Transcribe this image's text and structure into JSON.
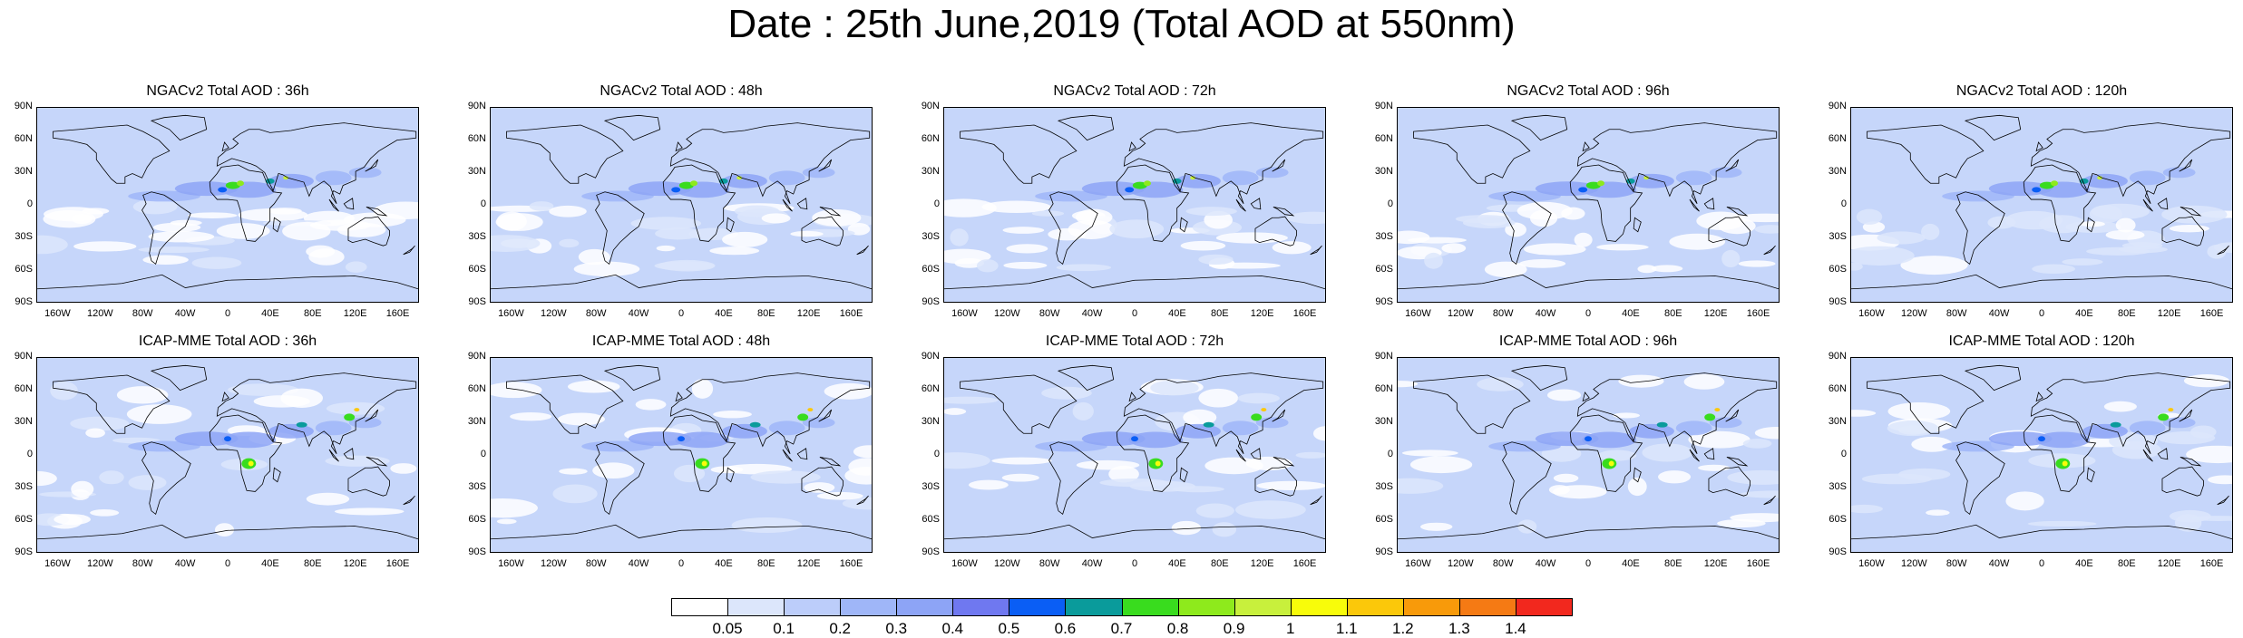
{
  "title": "Date : 25th June,2019 (Total AOD at 550nm)",
  "lat_ticks": [
    "90N",
    "60N",
    "30N",
    "0",
    "30S",
    "60S",
    "90S"
  ],
  "lon_ticks": [
    "160W",
    "120W",
    "80W",
    "40W",
    "0",
    "40E",
    "80E",
    "120E",
    "160E"
  ],
  "panels": [
    {
      "title": "NGACv2 Total AOD : 36h",
      "model": "ngac"
    },
    {
      "title": "NGACv2 Total AOD : 48h",
      "model": "ngac"
    },
    {
      "title": "NGACv2 Total AOD : 72h",
      "model": "ngac"
    },
    {
      "title": "NGACv2 Total AOD : 96h",
      "model": "ngac"
    },
    {
      "title": "NGACv2 Total AOD : 120h",
      "model": "ngac"
    },
    {
      "title": "ICAP-MME Total AOD : 36h",
      "model": "icap"
    },
    {
      "title": "ICAP-MME Total AOD : 48h",
      "model": "icap"
    },
    {
      "title": "ICAP-MME Total AOD : 72h",
      "model": "icap"
    },
    {
      "title": "ICAP-MME Total AOD : 96h",
      "model": "icap"
    },
    {
      "title": "ICAP-MME Total AOD : 120h",
      "model": "icap"
    }
  ],
  "colorbar": {
    "labels": [
      "0.05",
      "0.1",
      "0.2",
      "0.3",
      "0.4",
      "0.5",
      "0.6",
      "0.7",
      "0.8",
      "0.9",
      "1",
      "1.1",
      "1.2",
      "1.3",
      "1.4"
    ],
    "colors": [
      "#ffffff",
      "#dce6fb",
      "#bccdfa",
      "#9fb6f8",
      "#8da4f6",
      "#6f78f0",
      "#0a5ef5",
      "#0a9b9b",
      "#39dc1e",
      "#8eea1c",
      "#c8f03c",
      "#f8fc0a",
      "#fbc80a",
      "#f89a0a",
      "#f57a14",
      "#f2281e"
    ]
  }
}
